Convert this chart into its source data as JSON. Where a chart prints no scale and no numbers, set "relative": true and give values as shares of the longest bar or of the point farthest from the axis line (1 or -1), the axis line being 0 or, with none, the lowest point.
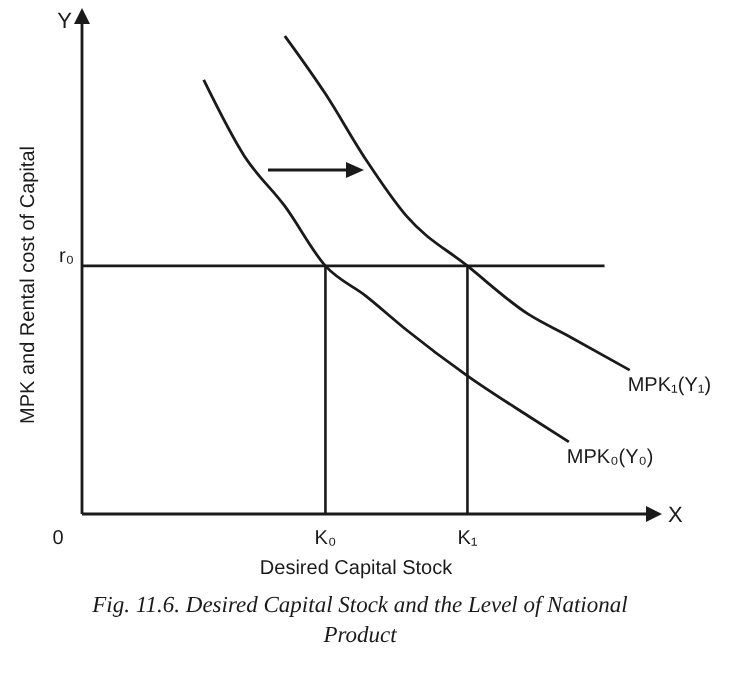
{
  "chart_data": {
    "type": "line",
    "relative": true,
    "xlabel": "Desired Capital Stock",
    "ylabel": "MPK and Rental cost of Capital",
    "categories": [
      "0",
      null,
      null,
      null,
      null,
      null,
      null,
      null,
      null,
      null,
      null,
      null,
      "K₀",
      null,
      null,
      null,
      null,
      null,
      null,
      "K₁",
      null,
      null,
      null,
      null,
      null,
      null,
      null,
      null,
      null
    ],
    "series": [
      {
        "name": "MPK₀(Y₀)",
        "color": "#1a1a1a",
        "values": [
          null,
          null,
          null,
          null,
          null,
          null,
          0.908,
          null,
          0.749,
          null,
          0.644,
          null,
          0.519,
          null,
          0.456,
          null,
          0.385,
          null,
          null,
          0.289,
          null,
          null,
          0.205,
          null,
          0.151,
          null,
          null,
          null,
          null
        ]
      },
      {
        "name": "MPK₁(Y₁)",
        "color": "#1a1a1a",
        "values": [
          null,
          null,
          null,
          null,
          null,
          null,
          null,
          null,
          null,
          null,
          1,
          null,
          0.879,
          null,
          0.741,
          null,
          0.623,
          null,
          null,
          0.519,
          null,
          null,
          0.418,
          null,
          0.372,
          null,
          null,
          0.301,
          null
        ]
      }
    ],
    "ref_lines": [
      {
        "axis": "y",
        "value": 0.519,
        "label": "r₀"
      },
      {
        "axis": "x",
        "value": "K₀"
      },
      {
        "axis": "x",
        "value": "K₁"
      }
    ],
    "annotations": [
      "Y",
      "X",
      "Fig. 11.6. Desired Capital Stock and the Level of National Product"
    ],
    "grid": false,
    "marker": "none",
    "line_style": "solid"
  }
}
